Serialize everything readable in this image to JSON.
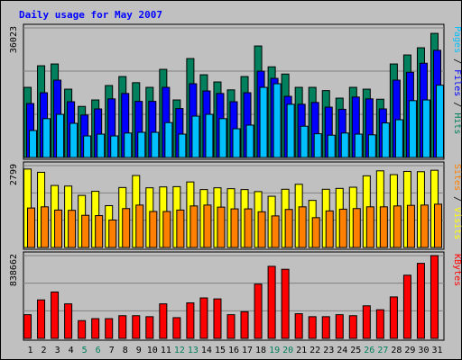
{
  "chart_data": {
    "type": "bar",
    "title": "Daily usage for May 2007",
    "colors": {
      "background": "#c0c0c0",
      "title": "#0000ff",
      "hits": "#00805c",
      "files": "#0000ff",
      "pages": "#00c0ff",
      "visits": "#ffff00",
      "sites": "#ff8000",
      "kbytes": "#ff0000",
      "weekend_label": "#00805c",
      "weekday_label": "#000000"
    },
    "days": [
      "1",
      "2",
      "3",
      "4",
      "5",
      "6",
      "7",
      "8",
      "9",
      "10",
      "11",
      "12",
      "13",
      "14",
      "15",
      "16",
      "17",
      "18",
      "19",
      "20",
      "21",
      "22",
      "23",
      "24",
      "25",
      "26",
      "27",
      "28",
      "29",
      "30",
      "31"
    ],
    "weekend_days": [
      "5",
      "6",
      "12",
      "13",
      "19",
      "20",
      "26",
      "27"
    ],
    "panels": [
      {
        "id": "hits-files-pages",
        "max_label": "36023",
        "ylim": [
          0,
          36023
        ],
        "legend": [
          {
            "text": "Pages",
            "color": "#00c0ff"
          },
          {
            "text": " / ",
            "color": "#000000"
          },
          {
            "text": "Files",
            "color": "#0000ff"
          },
          {
            "text": " / ",
            "color": "#000000"
          },
          {
            "text": "Hits",
            "color": "#00805c"
          }
        ],
        "series": [
          {
            "name": "Hits",
            "color": "#00805c",
            "values": [
              19500,
              25500,
              26000,
              19000,
              14200,
              16000,
              20000,
              22500,
              20800,
              19500,
              24500,
              16000,
              27500,
              23000,
              21000,
              18800,
              22500,
              31000,
              25200,
              23200,
              19500,
              19500,
              18600,
              16500,
              19500,
              19000,
              16200,
              26000,
              28500,
              30500,
              34500
            ]
          },
          {
            "name": "Files",
            "color": "#0000ff",
            "values": [
              15000,
              18000,
              21500,
              15500,
              11800,
              13500,
              16300,
              17800,
              15600,
              15600,
              19500,
              13600,
              20500,
              18500,
              17800,
              15500,
              18000,
              24000,
              22000,
              17000,
              14800,
              15300,
              14000,
              13400,
              16800,
              16300,
              13500,
              21500,
              23700,
              26200,
              29800
            ]
          },
          {
            "name": "Pages",
            "color": "#00c0ff",
            "values": [
              7500,
              10800,
              12000,
              9500,
              6000,
              6500,
              6000,
              6800,
              7000,
              7000,
              9700,
              6500,
              11500,
              12000,
              10800,
              8000,
              9000,
              19500,
              20500,
              14800,
              8700,
              6600,
              6200,
              6800,
              6500,
              6300,
              9600,
              10500,
              15800,
              16000,
              20100
            ]
          }
        ]
      },
      {
        "id": "visits-sites",
        "max_label": "2799",
        "ylim": [
          0,
          2799
        ],
        "legend": [
          {
            "text": "Sites",
            "color": "#ff8000"
          },
          {
            "text": " / ",
            "color": "#000000"
          },
          {
            "text": "Visits",
            "color": "#ffff00"
          }
        ],
        "series": [
          {
            "name": "Visits",
            "color": "#ffff00",
            "values": [
              2680,
              2570,
              2120,
              2100,
              1780,
              1920,
              1430,
              2050,
              2460,
              2040,
              2070,
              2080,
              2240,
              1980,
              2040,
              2010,
              1980,
              1910,
              1750,
              1990,
              2160,
              1610,
              1990,
              2020,
              2060,
              2450,
              2620,
              2490,
              2600,
              2590,
              2640
            ]
          },
          {
            "name": "Sites",
            "color": "#ff8000",
            "values": [
              1350,
              1390,
              1280,
              1270,
              1100,
              1090,
              940,
              1330,
              1450,
              1230,
              1230,
              1280,
              1420,
              1450,
              1380,
              1320,
              1320,
              1220,
              1080,
              1300,
              1390,
              1020,
              1250,
              1310,
              1330,
              1390,
              1390,
              1420,
              1440,
              1450,
              1480
            ]
          }
        ]
      },
      {
        "id": "kbytes",
        "max_label": "838662",
        "ylim": [
          0,
          838662
        ],
        "legend": [
          {
            "text": "KBytes",
            "color": "#ff0000"
          }
        ],
        "series": [
          {
            "name": "KBytes",
            "color": "#ff0000",
            "values": [
              240000,
              390000,
              470000,
              350000,
              180000,
              200000,
              200000,
              230000,
              230000,
              220000,
              350000,
              210000,
              360000,
              410000,
              400000,
              240000,
              270000,
              550000,
              730000,
              700000,
              250000,
              220000,
              220000,
              240000,
              230000,
              330000,
              290000,
              420000,
              640000,
              760000,
              838662
            ]
          }
        ]
      }
    ]
  }
}
